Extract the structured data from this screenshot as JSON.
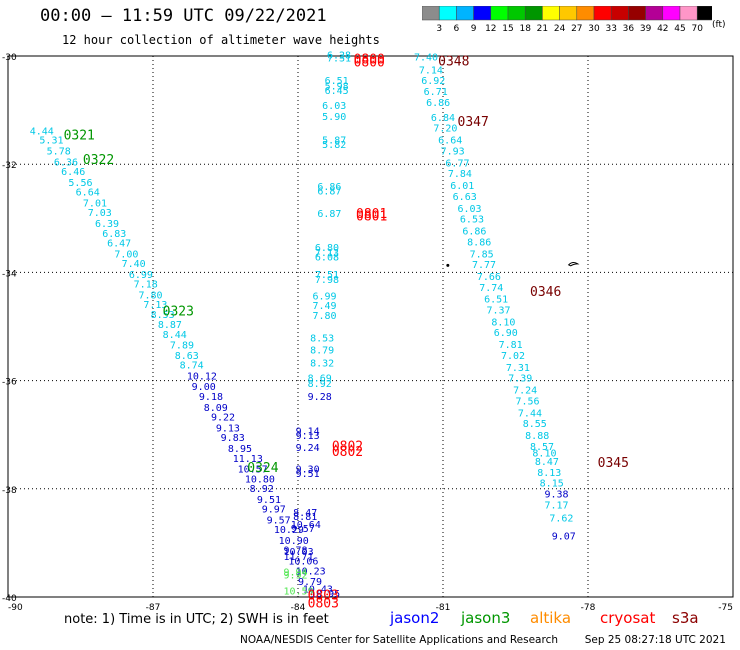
{
  "title": "00:00 – 11:59 UTC 09/22/2021",
  "subtitle": "12 hour collection of altimeter wave heights",
  "colorbar": {
    "labels": [
      "3",
      "6",
      "9",
      "12",
      "15",
      "18",
      "21",
      "24",
      "27",
      "30",
      "33",
      "36",
      "39",
      "42",
      "45",
      "70"
    ],
    "unit": "(ft)",
    "colors": [
      "#8c8c8c",
      "#00ffff",
      "#00b4ff",
      "#0000ff",
      "#00ff00",
      "#00c800",
      "#009600",
      "#ffff00",
      "#ffc800",
      "#ff8c00",
      "#ff0000",
      "#c80000",
      "#960000",
      "#b40096",
      "#ff00ff",
      "#ff96c8",
      "#000000"
    ]
  },
  "axes": {
    "y_ticks": [
      "-30",
      "-32",
      "-34",
      "-36",
      "-38",
      "-40"
    ],
    "x_ticks": [
      "-90",
      "-87",
      "-84",
      "-81",
      "-78",
      "-75"
    ]
  },
  "note": "note: 1) Time is in UTC; 2) SWH is in feet",
  "legend": [
    {
      "name": "jason2",
      "color": "#0000ff"
    },
    {
      "name": "jason3",
      "color": "#009600"
    },
    {
      "name": "altika",
      "color": "#ff8c00"
    },
    {
      "name": "cryosat",
      "color": "#ff0000"
    },
    {
      "name": "s3a",
      "color": "#8b0000"
    }
  ],
  "credit": "NOAA/NESDIS Center for Satellite Applications and Research",
  "timestamp": "Sep 25 08:27:18 UTC 2021",
  "map_data": {
    "lon_range": [
      -90,
      -75
    ],
    "lat_range": [
      -40,
      -30
    ],
    "colors": {
      "cyan": "#00c8e6",
      "blue": "#0000c8",
      "green": "#009600",
      "lightgreen": "#50e650",
      "red": "#ff0000",
      "darkred": "#780000"
    },
    "tracks": [
      {
        "color": "cyan",
        "points": [
          [
            "4.44",
            -89.55,
            -31.45
          ],
          [
            "5.31",
            -89.35,
            -31.62
          ],
          [
            "5.78",
            -89.2,
            -31.82
          ],
          [
            "6.36",
            -89.05,
            -32.02
          ],
          [
            "6.46",
            -88.9,
            -32.2
          ],
          [
            "5.56",
            -88.75,
            -32.4
          ],
          [
            "6.64",
            -88.6,
            -32.58
          ],
          [
            "7.01",
            -88.45,
            -32.78
          ],
          [
            "7.03",
            -88.35,
            -32.96
          ],
          [
            "6.39",
            -88.2,
            -33.16
          ],
          [
            "6.83",
            -88.05,
            -33.35
          ],
          [
            "6.47",
            -87.95,
            -33.52
          ],
          [
            "7.00",
            -87.8,
            -33.72
          ],
          [
            "7.40",
            -87.65,
            -33.9
          ],
          [
            "6.99",
            -87.5,
            -34.1
          ],
          [
            "7.18",
            -87.4,
            -34.28
          ],
          [
            "7.80",
            -87.3,
            -34.48
          ],
          [
            "7.13",
            -87.2,
            -34.66
          ],
          [
            "8.53",
            -87.05,
            -34.84
          ],
          [
            "8.87",
            -86.9,
            -35.03
          ],
          [
            "8.44",
            -86.8,
            -35.21
          ],
          [
            "7.89",
            -86.65,
            -35.41
          ],
          [
            "8.63",
            -86.55,
            -35.6
          ],
          [
            "8.74",
            -86.45,
            -35.78
          ]
        ]
      },
      {
        "color": "blue",
        "points": [
          [
            "10.12",
            -86.3,
            -35.98
          ],
          [
            "9.00",
            -86.2,
            -36.17
          ],
          [
            "9.18",
            -86.05,
            -36.36
          ],
          [
            "8.09",
            -85.95,
            -36.56
          ],
          [
            "9.22",
            -85.8,
            -36.74
          ],
          [
            "9.13",
            -85.7,
            -36.94
          ],
          [
            "9.83",
            -85.6,
            -37.12
          ],
          [
            "8.95",
            -85.45,
            -37.32
          ],
          [
            "11.13",
            -85.35,
            -37.5
          ],
          [
            "10.57",
            -85.25,
            -37.7
          ],
          [
            "10.80",
            -85.1,
            -37.88
          ],
          [
            "8.92",
            -85.0,
            -38.06
          ],
          [
            "9.51",
            -84.85,
            -38.26
          ],
          [
            "9.97",
            -84.75,
            -38.44
          ],
          [
            "9.57",
            -84.65,
            -38.64
          ],
          [
            "10.29",
            -84.5,
            -38.82
          ],
          [
            "10.90",
            -84.4,
            -39.02
          ],
          [
            "9.78",
            -84.3,
            -39.2
          ],
          [
            "10.06",
            -84.2,
            -39.4
          ],
          [
            "10.23",
            -84.05,
            -39.58
          ],
          [
            "9.79",
            -84.0,
            -39.78
          ],
          [
            "10.43",
            -83.9,
            -39.92
          ],
          [
            "10.95",
            -83.75,
            -40.0
          ]
        ]
      },
      {
        "color": "cyan",
        "points": [
          [
            "6.28",
            -83.4,
            -30.05
          ],
          [
            "7.31",
            -83.4,
            -30.1
          ],
          [
            "6.51",
            -83.45,
            -30.52
          ],
          [
            "5.98",
            -83.45,
            -30.62
          ],
          [
            "6.45",
            -83.45,
            -30.7
          ],
          [
            "6.03",
            -83.5,
            -30.98
          ],
          [
            "5.90",
            -83.5,
            -31.18
          ],
          [
            "5.87",
            -83.5,
            -31.62
          ],
          [
            "5.82",
            -83.5,
            -31.7
          ],
          [
            "6.86",
            -83.6,
            -32.48
          ],
          [
            "6.87",
            -83.6,
            -32.56
          ],
          [
            "6.87",
            -83.6,
            -32.98
          ],
          [
            "6.80",
            -83.65,
            -33.6
          ],
          [
            "7.13",
            -83.65,
            -33.7
          ],
          [
            "6.08",
            -83.65,
            -33.78
          ],
          [
            "7.51",
            -83.65,
            -34.1
          ],
          [
            "7.98",
            -83.65,
            -34.2
          ],
          [
            "6.99",
            -83.7,
            -34.5
          ],
          [
            "7.49",
            -83.7,
            -34.68
          ],
          [
            "7.80",
            -83.7,
            -34.86
          ],
          [
            "8.53",
            -83.75,
            -35.28
          ],
          [
            "8.79",
            -83.75,
            -35.5
          ],
          [
            "8.32",
            -83.75,
            -35.74
          ],
          [
            "8.69",
            -83.8,
            -36.02
          ],
          [
            "8.92",
            -83.8,
            -36.12
          ]
        ]
      },
      {
        "color": "blue",
        "points": [
          [
            "9.28",
            -83.8,
            -36.36
          ],
          [
            "9.14",
            -84.05,
            -37.0
          ],
          [
            "9.13",
            -84.05,
            -37.08
          ],
          [
            "9.24",
            -84.05,
            -37.3
          ],
          [
            "9.30",
            -84.05,
            -37.7
          ],
          [
            "9.51",
            -84.05,
            -37.78
          ],
          [
            "8.47",
            -84.1,
            -38.5
          ],
          [
            "8.81",
            -84.1,
            -38.58
          ],
          [
            "10.64",
            -84.15,
            -38.72
          ],
          [
            "9.57",
            -84.15,
            -38.8
          ],
          [
            "10.03",
            -84.3,
            -39.22
          ],
          [
            "11.71",
            -84.3,
            -39.32
          ]
        ]
      },
      {
        "color": "lightgreen",
        "points": [
          [
            "9.94",
            -84.3,
            -39.6
          ],
          [
            "9.92",
            -84.3,
            -39.66
          ],
          [
            "10.59",
            -84.3,
            -39.95
          ]
        ]
      },
      {
        "color": "cyan",
        "points": [
          [
            "7.40",
            -81.6,
            -30.08
          ],
          [
            "7.14",
            -81.5,
            -30.32
          ],
          [
            "6.92",
            -81.45,
            -30.52
          ],
          [
            "6.71",
            -81.4,
            -30.72
          ],
          [
            "6.86",
            -81.35,
            -30.92
          ],
          [
            "6.84",
            -81.25,
            -31.2
          ],
          [
            "7.20",
            -81.2,
            -31.4
          ],
          [
            "6.64",
            -81.1,
            -31.62
          ],
          [
            "7.93",
            -81.05,
            -31.82
          ],
          [
            "6.77",
            -80.95,
            -32.04
          ],
          [
            "7.84",
            -80.9,
            -32.24
          ],
          [
            "6.01",
            -80.85,
            -32.46
          ],
          [
            "6.63",
            -80.8,
            -32.66
          ],
          [
            "6.03",
            -80.7,
            -32.88
          ],
          [
            "6.53",
            -80.65,
            -33.08
          ],
          [
            "6.86",
            -80.6,
            -33.3
          ],
          [
            "8.86",
            -80.5,
            -33.5
          ],
          [
            "7.85",
            -80.45,
            -33.72
          ],
          [
            "7.77",
            -80.4,
            -33.92
          ],
          [
            "7.66",
            -80.3,
            -34.14
          ],
          [
            "7.74",
            -80.25,
            -34.34
          ],
          [
            "6.51",
            -80.15,
            -34.56
          ],
          [
            "7.37",
            -80.1,
            -34.76
          ],
          [
            "8.10",
            -80.0,
            -34.98
          ],
          [
            "6.90",
            -79.95,
            -35.18
          ],
          [
            "7.81",
            -79.85,
            -35.4
          ],
          [
            "7.02",
            -79.8,
            -35.6
          ],
          [
            "7.31",
            -79.7,
            -35.82
          ],
          [
            "7.39",
            -79.65,
            -36.02
          ],
          [
            "7.24",
            -79.55,
            -36.24
          ],
          [
            "7.56",
            -79.5,
            -36.44
          ],
          [
            "7.44",
            -79.45,
            -36.66
          ],
          [
            "8.55",
            -79.35,
            -36.86
          ],
          [
            "8.88",
            -79.3,
            -37.08
          ],
          [
            "8.57",
            -79.2,
            -37.28
          ],
          [
            "8.10",
            -79.15,
            -37.4
          ],
          [
            "8.47",
            -79.1,
            -37.56
          ],
          [
            "8.13",
            -79.05,
            -37.76
          ],
          [
            "8.15",
            -79.0,
            -37.96
          ]
        ]
      },
      {
        "color": "blue",
        "points": [
          [
            "9.38",
            -78.9,
            -38.16
          ],
          [
            "9.07",
            -78.75,
            -38.94
          ]
        ]
      },
      {
        "color": "cyan",
        "points": [
          [
            "7.17",
            -78.9,
            -38.36
          ],
          [
            "7.62",
            -78.8,
            -38.6
          ]
        ]
      }
    ],
    "time_labels": [
      {
        "text": "0321",
        "lon": -88.85,
        "lat": -31.45,
        "color": "green"
      },
      {
        "text": "0322",
        "lon": -88.45,
        "lat": -31.9,
        "color": "green"
      },
      {
        "text": "0323",
        "lon": -86.8,
        "lat": -34.7,
        "color": "green"
      },
      {
        "text": "0324",
        "lon": -85.05,
        "lat": -37.6,
        "color": "green"
      },
      {
        "text": "0800",
        "lon": -82.85,
        "lat": -30.05,
        "color": "red"
      },
      {
        "text": "0800",
        "lon": -82.85,
        "lat": -30.1,
        "color": "red"
      },
      {
        "text": "0801",
        "lon": -82.8,
        "lat": -32.9,
        "color": "red"
      },
      {
        "text": "0801",
        "lon": -82.8,
        "lat": -32.95,
        "color": "red"
      },
      {
        "text": "0802",
        "lon": -83.3,
        "lat": -37.2,
        "color": "red"
      },
      {
        "text": "0802",
        "lon": -83.3,
        "lat": -37.3,
        "color": "red"
      },
      {
        "text": "0803",
        "lon": -83.8,
        "lat": -39.95,
        "color": "red"
      },
      {
        "text": "0803",
        "lon": -83.8,
        "lat": -40.1,
        "color": "red"
      },
      {
        "text": "0348",
        "lon": -81.1,
        "lat": -30.08,
        "color": "darkred"
      },
      {
        "text": "0347",
        "lon": -80.7,
        "lat": -31.2,
        "color": "darkred"
      },
      {
        "text": "0346",
        "lon": -79.2,
        "lat": -34.34,
        "color": "darkred"
      },
      {
        "text": "0345",
        "lon": -77.8,
        "lat": -37.5,
        "color": "darkred"
      }
    ]
  }
}
